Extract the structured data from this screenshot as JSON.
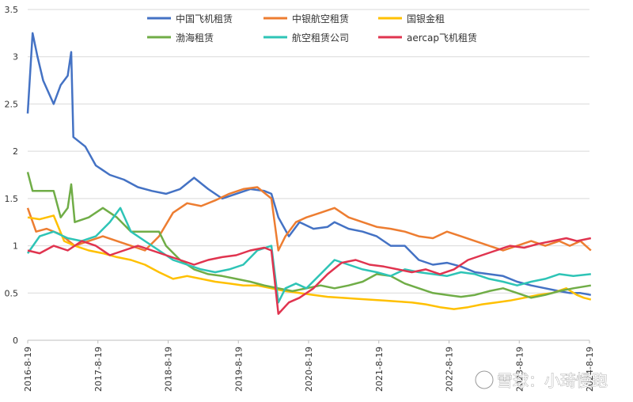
{
  "chart_data": {
    "type": "line",
    "title": "",
    "xlabel": "",
    "ylabel": "",
    "ylim": [
      0,
      3.5
    ],
    "y_ticks": [
      "0",
      "0.5",
      "1",
      "1.5",
      "2",
      "2.5",
      "3",
      "3.5"
    ],
    "x_ticks": [
      "2016-8-19",
      "2017-8-19",
      "2018-8-19",
      "2019-8-19",
      "2020-8-19",
      "2021-8-19",
      "2022-8-19",
      "2023-8-19",
      "2024-8-19"
    ],
    "grid": "horizontal",
    "legend_position": "top",
    "series": [
      {
        "name": "中国飞机租赁",
        "color": "#4472C4",
        "values": [
          [
            2016.63,
            2.4
          ],
          [
            2016.7,
            3.25
          ],
          [
            2016.77,
            3.0
          ],
          [
            2016.85,
            2.75
          ],
          [
            2017.0,
            2.5
          ],
          [
            2017.1,
            2.7
          ],
          [
            2017.2,
            2.8
          ],
          [
            2017.25,
            3.05
          ],
          [
            2017.28,
            2.15
          ],
          [
            2017.45,
            2.05
          ],
          [
            2017.6,
            1.85
          ],
          [
            2017.8,
            1.75
          ],
          [
            2018.0,
            1.7
          ],
          [
            2018.2,
            1.62
          ],
          [
            2018.4,
            1.58
          ],
          [
            2018.6,
            1.55
          ],
          [
            2018.8,
            1.6
          ],
          [
            2019.0,
            1.72
          ],
          [
            2019.2,
            1.6
          ],
          [
            2019.4,
            1.5
          ],
          [
            2019.6,
            1.55
          ],
          [
            2019.8,
            1.6
          ],
          [
            2020.0,
            1.58
          ],
          [
            2020.1,
            1.55
          ],
          [
            2020.2,
            1.3
          ],
          [
            2020.35,
            1.1
          ],
          [
            2020.5,
            1.25
          ],
          [
            2020.7,
            1.18
          ],
          [
            2020.9,
            1.2
          ],
          [
            2021.0,
            1.25
          ],
          [
            2021.2,
            1.18
          ],
          [
            2021.4,
            1.15
          ],
          [
            2021.6,
            1.1
          ],
          [
            2021.8,
            1.0
          ],
          [
            2022.0,
            1.0
          ],
          [
            2022.2,
            0.85
          ],
          [
            2022.4,
            0.8
          ],
          [
            2022.6,
            0.82
          ],
          [
            2022.8,
            0.78
          ],
          [
            2023.0,
            0.72
          ],
          [
            2023.2,
            0.7
          ],
          [
            2023.4,
            0.68
          ],
          [
            2023.6,
            0.62
          ],
          [
            2023.8,
            0.58
          ],
          [
            2024.0,
            0.55
          ],
          [
            2024.2,
            0.52
          ],
          [
            2024.35,
            0.5
          ],
          [
            2024.5,
            0.5
          ],
          [
            2024.65,
            0.48
          ]
        ]
      },
      {
        "name": "中银航空租赁",
        "color": "#ED7D31",
        "values": [
          [
            2016.63,
            1.4
          ],
          [
            2016.75,
            1.15
          ],
          [
            2016.9,
            1.18
          ],
          [
            2017.1,
            1.12
          ],
          [
            2017.3,
            1.0
          ],
          [
            2017.5,
            1.05
          ],
          [
            2017.7,
            1.1
          ],
          [
            2017.9,
            1.05
          ],
          [
            2018.1,
            1.0
          ],
          [
            2018.3,
            0.95
          ],
          [
            2018.5,
            1.1
          ],
          [
            2018.7,
            1.35
          ],
          [
            2018.9,
            1.45
          ],
          [
            2019.1,
            1.42
          ],
          [
            2019.3,
            1.48
          ],
          [
            2019.5,
            1.55
          ],
          [
            2019.7,
            1.6
          ],
          [
            2019.9,
            1.62
          ],
          [
            2020.1,
            1.5
          ],
          [
            2020.2,
            0.95
          ],
          [
            2020.3,
            1.1
          ],
          [
            2020.45,
            1.25
          ],
          [
            2020.6,
            1.3
          ],
          [
            2020.8,
            1.35
          ],
          [
            2021.0,
            1.4
          ],
          [
            2021.2,
            1.3
          ],
          [
            2021.4,
            1.25
          ],
          [
            2021.6,
            1.2
          ],
          [
            2021.8,
            1.18
          ],
          [
            2022.0,
            1.15
          ],
          [
            2022.2,
            1.1
          ],
          [
            2022.4,
            1.08
          ],
          [
            2022.6,
            1.15
          ],
          [
            2022.8,
            1.1
          ],
          [
            2023.0,
            1.05
          ],
          [
            2023.2,
            1.0
          ],
          [
            2023.4,
            0.95
          ],
          [
            2023.6,
            1.0
          ],
          [
            2023.8,
            1.05
          ],
          [
            2024.0,
            1.0
          ],
          [
            2024.2,
            1.05
          ],
          [
            2024.35,
            1.0
          ],
          [
            2024.5,
            1.05
          ],
          [
            2024.65,
            0.95
          ]
        ]
      },
      {
        "name": "国银金租",
        "color": "#FFC000",
        "values": [
          [
            2016.63,
            1.3
          ],
          [
            2016.8,
            1.28
          ],
          [
            2017.0,
            1.32
          ],
          [
            2017.15,
            1.05
          ],
          [
            2017.3,
            1.0
          ],
          [
            2017.5,
            0.95
          ],
          [
            2017.7,
            0.92
          ],
          [
            2017.9,
            0.88
          ],
          [
            2018.1,
            0.85
          ],
          [
            2018.3,
            0.8
          ],
          [
            2018.5,
            0.72
          ],
          [
            2018.7,
            0.65
          ],
          [
            2018.9,
            0.68
          ],
          [
            2019.1,
            0.65
          ],
          [
            2019.3,
            0.62
          ],
          [
            2019.5,
            0.6
          ],
          [
            2019.7,
            0.58
          ],
          [
            2019.9,
            0.58
          ],
          [
            2020.1,
            0.55
          ],
          [
            2020.3,
            0.52
          ],
          [
            2020.5,
            0.5
          ],
          [
            2020.7,
            0.48
          ],
          [
            2020.9,
            0.46
          ],
          [
            2021.1,
            0.45
          ],
          [
            2021.3,
            0.44
          ],
          [
            2021.5,
            0.43
          ],
          [
            2021.7,
            0.42
          ],
          [
            2021.9,
            0.41
          ],
          [
            2022.1,
            0.4
          ],
          [
            2022.3,
            0.38
          ],
          [
            2022.5,
            0.35
          ],
          [
            2022.7,
            0.33
          ],
          [
            2022.9,
            0.35
          ],
          [
            2023.1,
            0.38
          ],
          [
            2023.3,
            0.4
          ],
          [
            2023.5,
            0.42
          ],
          [
            2023.7,
            0.45
          ],
          [
            2023.9,
            0.48
          ],
          [
            2024.1,
            0.5
          ],
          [
            2024.3,
            0.55
          ],
          [
            2024.45,
            0.48
          ],
          [
            2024.55,
            0.45
          ],
          [
            2024.65,
            0.43
          ]
        ]
      },
      {
        "name": "渤海租赁",
        "color": "#70AD47",
        "values": [
          [
            2016.63,
            1.78
          ],
          [
            2016.7,
            1.58
          ],
          [
            2017.0,
            1.58
          ],
          [
            2017.1,
            1.3
          ],
          [
            2017.2,
            1.4
          ],
          [
            2017.25,
            1.65
          ],
          [
            2017.3,
            1.25
          ],
          [
            2017.5,
            1.3
          ],
          [
            2017.7,
            1.4
          ],
          [
            2017.9,
            1.3
          ],
          [
            2018.1,
            1.15
          ],
          [
            2018.3,
            1.15
          ],
          [
            2018.5,
            1.15
          ],
          [
            2018.6,
            1.0
          ],
          [
            2018.8,
            0.85
          ],
          [
            2019.0,
            0.75
          ],
          [
            2019.2,
            0.7
          ],
          [
            2019.4,
            0.68
          ],
          [
            2019.6,
            0.65
          ],
          [
            2019.8,
            0.62
          ],
          [
            2020.0,
            0.58
          ],
          [
            2020.2,
            0.55
          ],
          [
            2020.4,
            0.52
          ],
          [
            2020.6,
            0.55
          ],
          [
            2020.8,
            0.58
          ],
          [
            2021.0,
            0.55
          ],
          [
            2021.2,
            0.58
          ],
          [
            2021.4,
            0.62
          ],
          [
            2021.6,
            0.7
          ],
          [
            2021.8,
            0.68
          ],
          [
            2022.0,
            0.6
          ],
          [
            2022.2,
            0.55
          ],
          [
            2022.4,
            0.5
          ],
          [
            2022.6,
            0.48
          ],
          [
            2022.8,
            0.46
          ],
          [
            2023.0,
            0.48
          ],
          [
            2023.2,
            0.52
          ],
          [
            2023.4,
            0.55
          ],
          [
            2023.6,
            0.5
          ],
          [
            2023.8,
            0.45
          ],
          [
            2024.0,
            0.48
          ],
          [
            2024.2,
            0.52
          ],
          [
            2024.4,
            0.55
          ],
          [
            2024.65,
            0.58
          ]
        ]
      },
      {
        "name": "航空租赁公司",
        "color": "#2EC4B6",
        "values": [
          [
            2016.63,
            0.92
          ],
          [
            2016.8,
            1.1
          ],
          [
            2017.0,
            1.15
          ],
          [
            2017.2,
            1.08
          ],
          [
            2017.4,
            1.05
          ],
          [
            2017.6,
            1.1
          ],
          [
            2017.8,
            1.25
          ],
          [
            2017.95,
            1.4
          ],
          [
            2018.1,
            1.15
          ],
          [
            2018.3,
            1.05
          ],
          [
            2018.5,
            0.95
          ],
          [
            2018.7,
            0.85
          ],
          [
            2018.9,
            0.8
          ],
          [
            2019.1,
            0.75
          ],
          [
            2019.3,
            0.72
          ],
          [
            2019.5,
            0.75
          ],
          [
            2019.7,
            0.8
          ],
          [
            2019.9,
            0.95
          ],
          [
            2020.1,
            1.0
          ],
          [
            2020.2,
            0.4
          ],
          [
            2020.3,
            0.55
          ],
          [
            2020.45,
            0.6
          ],
          [
            2020.6,
            0.55
          ],
          [
            2020.8,
            0.7
          ],
          [
            2021.0,
            0.85
          ],
          [
            2021.2,
            0.8
          ],
          [
            2021.4,
            0.75
          ],
          [
            2021.6,
            0.72
          ],
          [
            2021.8,
            0.68
          ],
          [
            2022.0,
            0.75
          ],
          [
            2022.2,
            0.72
          ],
          [
            2022.4,
            0.7
          ],
          [
            2022.6,
            0.68
          ],
          [
            2022.8,
            0.72
          ],
          [
            2023.0,
            0.7
          ],
          [
            2023.2,
            0.65
          ],
          [
            2023.4,
            0.62
          ],
          [
            2023.6,
            0.58
          ],
          [
            2023.8,
            0.62
          ],
          [
            2024.0,
            0.65
          ],
          [
            2024.2,
            0.7
          ],
          [
            2024.4,
            0.68
          ],
          [
            2024.65,
            0.7
          ]
        ]
      },
      {
        "name": "aercap飞机租赁",
        "color": "#E0344F",
        "values": [
          [
            2016.63,
            0.95
          ],
          [
            2016.8,
            0.92
          ],
          [
            2017.0,
            1.0
          ],
          [
            2017.2,
            0.95
          ],
          [
            2017.4,
            1.05
          ],
          [
            2017.6,
            1.0
          ],
          [
            2017.8,
            0.9
          ],
          [
            2018.0,
            0.95
          ],
          [
            2018.2,
            1.0
          ],
          [
            2018.4,
            0.95
          ],
          [
            2018.6,
            0.9
          ],
          [
            2018.8,
            0.85
          ],
          [
            2019.0,
            0.8
          ],
          [
            2019.2,
            0.85
          ],
          [
            2019.4,
            0.88
          ],
          [
            2019.6,
            0.9
          ],
          [
            2019.8,
            0.95
          ],
          [
            2020.0,
            0.98
          ],
          [
            2020.1,
            0.95
          ],
          [
            2020.2,
            0.28
          ],
          [
            2020.35,
            0.4
          ],
          [
            2020.5,
            0.45
          ],
          [
            2020.7,
            0.55
          ],
          [
            2020.9,
            0.7
          ],
          [
            2021.1,
            0.82
          ],
          [
            2021.3,
            0.85
          ],
          [
            2021.5,
            0.8
          ],
          [
            2021.7,
            0.78
          ],
          [
            2021.9,
            0.75
          ],
          [
            2022.1,
            0.72
          ],
          [
            2022.3,
            0.75
          ],
          [
            2022.5,
            0.7
          ],
          [
            2022.7,
            0.75
          ],
          [
            2022.9,
            0.85
          ],
          [
            2023.1,
            0.9
          ],
          [
            2023.3,
            0.95
          ],
          [
            2023.5,
            1.0
          ],
          [
            2023.7,
            0.98
          ],
          [
            2023.9,
            1.02
          ],
          [
            2024.1,
            1.05
          ],
          [
            2024.3,
            1.08
          ],
          [
            2024.45,
            1.05
          ],
          [
            2024.65,
            1.08
          ]
        ]
      }
    ]
  },
  "watermark": "雪球：小琦慢跑"
}
